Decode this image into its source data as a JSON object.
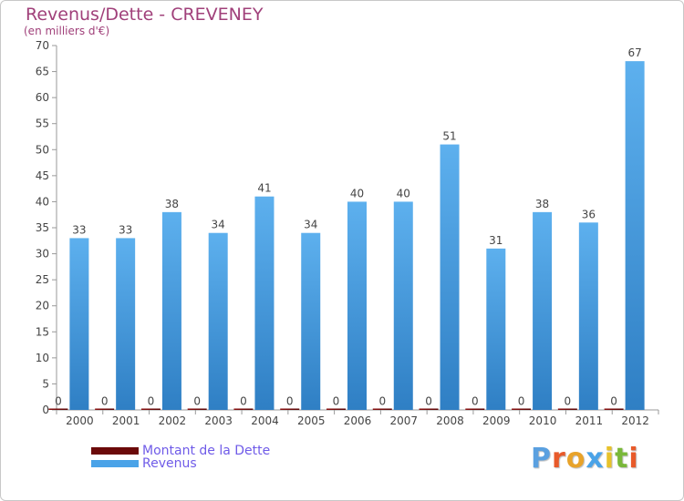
{
  "chart_data": {
    "type": "bar",
    "title": "Revenus/Dette - CREVENEY",
    "subtitle": "(en milliers d'€)",
    "categories": [
      "2000",
      "2001",
      "2002",
      "2003",
      "2004",
      "2005",
      "2006",
      "2007",
      "2008",
      "2009",
      "2010",
      "2011",
      "2012"
    ],
    "series": [
      {
        "name": "Montant de la Dette",
        "color": "#6b0a0a",
        "values": [
          0,
          0,
          0,
          0,
          0,
          0,
          0,
          0,
          0,
          0,
          0,
          0,
          0
        ]
      },
      {
        "name": "Revenus",
        "color": "#4aa3e8",
        "values": [
          33,
          33,
          38,
          34,
          41,
          34,
          40,
          40,
          51,
          31,
          38,
          36,
          67
        ]
      }
    ],
    "ylim": [
      0,
      70
    ],
    "yticks": [
      0,
      5,
      10,
      15,
      20,
      25,
      30,
      35,
      40,
      45,
      50,
      55,
      60,
      65,
      70
    ],
    "grid": false,
    "legend": "bottom-left"
  },
  "brand": {
    "letters": [
      "P",
      "r",
      "o",
      "x",
      "i",
      "t",
      "i"
    ],
    "colors": [
      "#5aa0e0",
      "#e85a2a",
      "#e8a32a",
      "#4aa3e8",
      "#e8c22a",
      "#7ab83a",
      "#e85a2a"
    ]
  }
}
